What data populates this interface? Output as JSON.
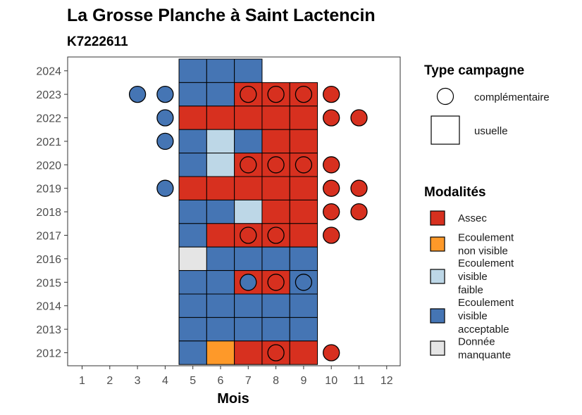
{
  "chart_data": {
    "type": "heatmap",
    "title": "La Grosse Planche à Saint Lactencin",
    "subtitle": "K7222611",
    "xlabel": "Mois",
    "ylabel": "",
    "x_ticks": [
      1,
      2,
      3,
      4,
      5,
      6,
      7,
      8,
      9,
      10,
      11,
      12
    ],
    "y_ticks": [
      2024,
      2023,
      2022,
      2021,
      2020,
      2019,
      2018,
      2017,
      2016,
      2015,
      2014,
      2013,
      2012
    ],
    "colors": {
      "Assec": "#d7301f",
      "Ecoulement non visible": "#fe9929",
      "Ecoulement visible faible": "#bdd7e7",
      "Ecoulement visible acceptable": "#4575b4",
      "Donnée manquante": "#e5e5e5"
    },
    "legend_type": {
      "title": "Type campagne",
      "items": [
        "complémentaire",
        "usuelle"
      ]
    },
    "legend_modalites": {
      "title": "Modalités",
      "items": [
        {
          "key": "Assec",
          "lines": [
            "Assec"
          ]
        },
        {
          "key": "Ecoulement non visible",
          "lines": [
            "Ecoulement",
            "non visible"
          ]
        },
        {
          "key": "Ecoulement visible faible",
          "lines": [
            "Ecoulement",
            "visible",
            "faible"
          ]
        },
        {
          "key": "Ecoulement visible acceptable",
          "lines": [
            "Ecoulement",
            "visible",
            "acceptable"
          ]
        },
        {
          "key": "Donnée manquante",
          "lines": [
            "Donnée",
            "manquante"
          ]
        }
      ]
    },
    "usuelle": [
      {
        "year": 2024,
        "month": 5,
        "modalite": "Ecoulement visible acceptable"
      },
      {
        "year": 2024,
        "month": 6,
        "modalite": "Ecoulement visible acceptable"
      },
      {
        "year": 2024,
        "month": 7,
        "modalite": "Ecoulement visible acceptable"
      },
      {
        "year": 2023,
        "month": 5,
        "modalite": "Ecoulement visible acceptable"
      },
      {
        "year": 2023,
        "month": 6,
        "modalite": "Ecoulement visible acceptable"
      },
      {
        "year": 2023,
        "month": 7,
        "modalite": "Assec"
      },
      {
        "year": 2023,
        "month": 8,
        "modalite": "Assec"
      },
      {
        "year": 2023,
        "month": 9,
        "modalite": "Assec"
      },
      {
        "year": 2022,
        "month": 5,
        "modalite": "Assec"
      },
      {
        "year": 2022,
        "month": 6,
        "modalite": "Assec"
      },
      {
        "year": 2022,
        "month": 7,
        "modalite": "Assec"
      },
      {
        "year": 2022,
        "month": 8,
        "modalite": "Assec"
      },
      {
        "year": 2022,
        "month": 9,
        "modalite": "Assec"
      },
      {
        "year": 2021,
        "month": 5,
        "modalite": "Ecoulement visible acceptable"
      },
      {
        "year": 2021,
        "month": 6,
        "modalite": "Ecoulement visible faible"
      },
      {
        "year": 2021,
        "month": 7,
        "modalite": "Ecoulement visible acceptable"
      },
      {
        "year": 2021,
        "month": 8,
        "modalite": "Assec"
      },
      {
        "year": 2021,
        "month": 9,
        "modalite": "Assec"
      },
      {
        "year": 2020,
        "month": 5,
        "modalite": "Ecoulement visible acceptable"
      },
      {
        "year": 2020,
        "month": 6,
        "modalite": "Ecoulement visible faible"
      },
      {
        "year": 2020,
        "month": 7,
        "modalite": "Assec"
      },
      {
        "year": 2020,
        "month": 8,
        "modalite": "Assec"
      },
      {
        "year": 2020,
        "month": 9,
        "modalite": "Assec"
      },
      {
        "year": 2019,
        "month": 5,
        "modalite": "Assec"
      },
      {
        "year": 2019,
        "month": 6,
        "modalite": "Assec"
      },
      {
        "year": 2019,
        "month": 7,
        "modalite": "Assec"
      },
      {
        "year": 2019,
        "month": 8,
        "modalite": "Assec"
      },
      {
        "year": 2019,
        "month": 9,
        "modalite": "Assec"
      },
      {
        "year": 2018,
        "month": 5,
        "modalite": "Ecoulement visible acceptable"
      },
      {
        "year": 2018,
        "month": 6,
        "modalite": "Ecoulement visible acceptable"
      },
      {
        "year": 2018,
        "month": 7,
        "modalite": "Ecoulement visible faible"
      },
      {
        "year": 2018,
        "month": 8,
        "modalite": "Assec"
      },
      {
        "year": 2018,
        "month": 9,
        "modalite": "Assec"
      },
      {
        "year": 2017,
        "month": 5,
        "modalite": "Ecoulement visible acceptable"
      },
      {
        "year": 2017,
        "month": 6,
        "modalite": "Assec"
      },
      {
        "year": 2017,
        "month": 7,
        "modalite": "Assec"
      },
      {
        "year": 2017,
        "month": 8,
        "modalite": "Assec"
      },
      {
        "year": 2017,
        "month": 9,
        "modalite": "Assec"
      },
      {
        "year": 2016,
        "month": 5,
        "modalite": "Donnée manquante"
      },
      {
        "year": 2016,
        "month": 6,
        "modalite": "Ecoulement visible acceptable"
      },
      {
        "year": 2016,
        "month": 7,
        "modalite": "Ecoulement visible acceptable"
      },
      {
        "year": 2016,
        "month": 8,
        "modalite": "Ecoulement visible acceptable"
      },
      {
        "year": 2016,
        "month": 9,
        "modalite": "Ecoulement visible acceptable"
      },
      {
        "year": 2015,
        "month": 5,
        "modalite": "Ecoulement visible acceptable"
      },
      {
        "year": 2015,
        "month": 6,
        "modalite": "Ecoulement visible acceptable"
      },
      {
        "year": 2015,
        "month": 7,
        "modalite": "Assec"
      },
      {
        "year": 2015,
        "month": 8,
        "modalite": "Assec"
      },
      {
        "year": 2015,
        "month": 9,
        "modalite": "Ecoulement visible acceptable"
      },
      {
        "year": 2014,
        "month": 5,
        "modalite": "Ecoulement visible acceptable"
      },
      {
        "year": 2014,
        "month": 6,
        "modalite": "Ecoulement visible acceptable"
      },
      {
        "year": 2014,
        "month": 7,
        "modalite": "Ecoulement visible acceptable"
      },
      {
        "year": 2014,
        "month": 8,
        "modalite": "Ecoulement visible acceptable"
      },
      {
        "year": 2014,
        "month": 9,
        "modalite": "Ecoulement visible acceptable"
      },
      {
        "year": 2013,
        "month": 5,
        "modalite": "Ecoulement visible acceptable"
      },
      {
        "year": 2013,
        "month": 6,
        "modalite": "Ecoulement visible acceptable"
      },
      {
        "year": 2013,
        "month": 7,
        "modalite": "Ecoulement visible acceptable"
      },
      {
        "year": 2013,
        "month": 8,
        "modalite": "Ecoulement visible acceptable"
      },
      {
        "year": 2013,
        "month": 9,
        "modalite": "Ecoulement visible acceptable"
      },
      {
        "year": 2012,
        "month": 5,
        "modalite": "Ecoulement visible acceptable"
      },
      {
        "year": 2012,
        "month": 6,
        "modalite": "Ecoulement non visible"
      },
      {
        "year": 2012,
        "month": 7,
        "modalite": "Assec"
      },
      {
        "year": 2012,
        "month": 8,
        "modalite": "Assec"
      },
      {
        "year": 2012,
        "month": 9,
        "modalite": "Assec"
      }
    ],
    "complementaire": [
      {
        "year": 2023,
        "month": 3,
        "modalite": "Ecoulement visible acceptable"
      },
      {
        "year": 2023,
        "month": 4,
        "modalite": "Ecoulement visible acceptable"
      },
      {
        "year": 2023,
        "month": 7,
        "modalite": "Assec"
      },
      {
        "year": 2023,
        "month": 8,
        "modalite": "Assec"
      },
      {
        "year": 2023,
        "month": 9,
        "modalite": "Assec"
      },
      {
        "year": 2023,
        "month": 10,
        "modalite": "Assec"
      },
      {
        "year": 2022,
        "month": 4,
        "modalite": "Ecoulement visible acceptable"
      },
      {
        "year": 2022,
        "month": 10,
        "modalite": "Assec"
      },
      {
        "year": 2022,
        "month": 11,
        "modalite": "Assec"
      },
      {
        "year": 2021,
        "month": 4,
        "modalite": "Ecoulement visible acceptable"
      },
      {
        "year": 2020,
        "month": 7,
        "modalite": "Assec"
      },
      {
        "year": 2020,
        "month": 8,
        "modalite": "Assec"
      },
      {
        "year": 2020,
        "month": 9,
        "modalite": "Assec"
      },
      {
        "year": 2020,
        "month": 10,
        "modalite": "Assec"
      },
      {
        "year": 2019,
        "month": 4,
        "modalite": "Ecoulement visible acceptable"
      },
      {
        "year": 2019,
        "month": 10,
        "modalite": "Assec"
      },
      {
        "year": 2019,
        "month": 11,
        "modalite": "Assec"
      },
      {
        "year": 2018,
        "month": 10,
        "modalite": "Assec"
      },
      {
        "year": 2018,
        "month": 11,
        "modalite": "Assec"
      },
      {
        "year": 2017,
        "month": 7,
        "modalite": "Assec"
      },
      {
        "year": 2017,
        "month": 8,
        "modalite": "Assec"
      },
      {
        "year": 2017,
        "month": 10,
        "modalite": "Assec"
      },
      {
        "year": 2015,
        "month": 7,
        "modalite": "Ecoulement visible acceptable"
      },
      {
        "year": 2015,
        "month": 8,
        "modalite": "Assec"
      },
      {
        "year": 2015,
        "month": 9,
        "modalite": "Ecoulement visible acceptable"
      },
      {
        "year": 2012,
        "month": 8,
        "modalite": "Assec"
      },
      {
        "year": 2012,
        "month": 10,
        "modalite": "Assec"
      }
    ]
  }
}
